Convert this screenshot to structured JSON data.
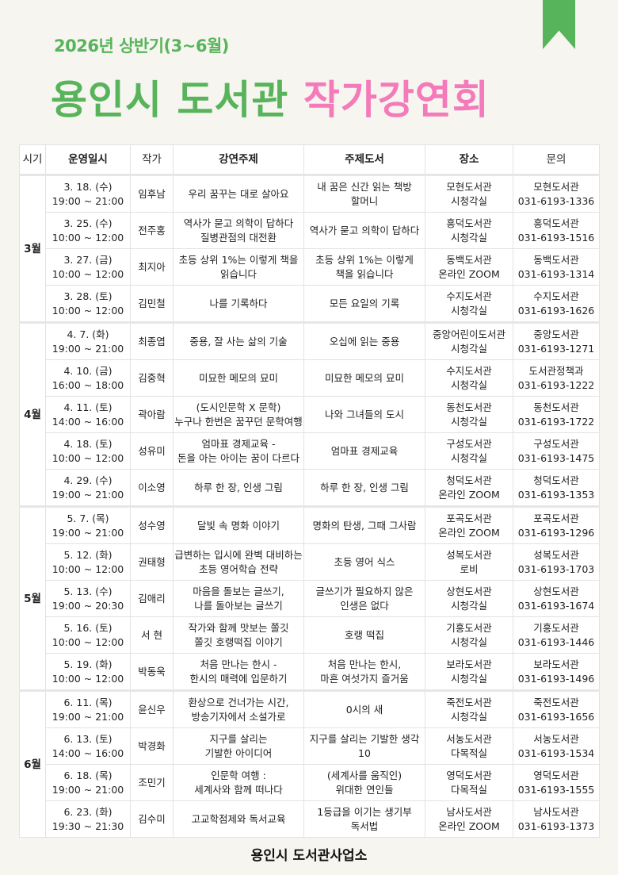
{
  "header": {
    "subtitle": "2026년 상반기(3~6월)",
    "title_green": "용인시 도서관",
    "title_pink": "작가강연회",
    "colors": {
      "green": "#58b45a",
      "pink": "#f47ab9"
    },
    "icon": "bookmark-icon"
  },
  "table": {
    "columns": [
      "시기",
      "운영일시",
      "작가",
      "강연주제",
      "주제도서",
      "장소",
      "문의"
    ],
    "groups": [
      {
        "month": "3월",
        "rows": [
          {
            "date": "3. 18. (수)",
            "time": "19:00 ~ 21:00",
            "author": "임후남",
            "topic": [
              "우리 꿈꾸는 대로 살아요"
            ],
            "book": [
              "내 꿈은 신간 읽는 책방",
              "할머니"
            ],
            "place": [
              "모현도서관",
              "시청각실"
            ],
            "contact": [
              "모현도서관",
              "031-6193-1336"
            ]
          },
          {
            "date": "3. 25. (수)",
            "time": "10:00 ~ 12:00",
            "author": "전주홍",
            "topic": [
              "역사가 묻고 의학이 답하다",
              "질병관점의 대전환"
            ],
            "book": [
              "역사가 묻고 의학이 답하다"
            ],
            "place": [
              "흥덕도서관",
              "시청각실"
            ],
            "contact": [
              "흥덕도서관",
              "031-6193-1516"
            ]
          },
          {
            "date": "3. 27. (금)",
            "time": "10:00 ~ 12:00",
            "author": "최지아",
            "topic": [
              "초등 상위 1%는 이렇게 책을",
              "읽습니다"
            ],
            "book": [
              "초등 상위 1%는 이렇게",
              "책을 읽습니다"
            ],
            "place": [
              "동백도서관",
              "온라인 ZOOM"
            ],
            "contact": [
              "동백도서관",
              "031-6193-1314"
            ]
          },
          {
            "date": "3. 28. (토)",
            "time": "10:00 ~ 12:00",
            "author": "김민철",
            "topic": [
              "나를 기록하다"
            ],
            "book": [
              "모든 요일의 기록"
            ],
            "place": [
              "수지도서관",
              "시청각실"
            ],
            "contact": [
              "수지도서관",
              "031-6193-1626"
            ]
          }
        ]
      },
      {
        "month": "4월",
        "rows": [
          {
            "date": "4. 7. (화)",
            "time": "19:00 ~ 21:00",
            "author": "최종엽",
            "topic": [
              "중용, 잘 사는 삶의 기술"
            ],
            "book": [
              "오십에 읽는 중용"
            ],
            "place": [
              "중앙어린이도서관",
              "시청각실"
            ],
            "contact": [
              "중앙도서관",
              "031-6193-1271"
            ]
          },
          {
            "date": "4. 10. (금)",
            "time": "16:00 ~ 18:00",
            "author": "김중혁",
            "topic": [
              "미묘한 메모의 묘미"
            ],
            "book": [
              "미묘한 메모의 묘미"
            ],
            "place": [
              "수지도서관",
              "시청각실"
            ],
            "contact": [
              "도서관정책과",
              "031-6193-1222"
            ]
          },
          {
            "date": "4. 11. (토)",
            "time": "14:00 ~ 16:00",
            "author": "곽아람",
            "topic": [
              "(도시인문학 X 문학)",
              "누구나 한번은 꿈꾸던 문학여행"
            ],
            "book": [
              "나와 그녀들의 도시"
            ],
            "place": [
              "동천도서관",
              "시청각실"
            ],
            "contact": [
              "동천도서관",
              "031-6193-1722"
            ]
          },
          {
            "date": "4. 18. (토)",
            "time": "10:00 ~ 12:00",
            "author": "성유미",
            "topic": [
              "엄마표 경제교육 -",
              "돈을 아는 아이는 꿈이 다르다"
            ],
            "book": [
              "엄마표 경제교육"
            ],
            "place": [
              "구성도서관",
              "시청각실"
            ],
            "contact": [
              "구성도서관",
              "031-6193-1475"
            ]
          },
          {
            "date": "4. 29. (수)",
            "time": "19:00 ~ 21:00",
            "author": "이소영",
            "topic": [
              "하루 한 장, 인생 그림"
            ],
            "book": [
              "하루 한 장, 인생 그림"
            ],
            "place": [
              "청덕도서관",
              "온라인 ZOOM"
            ],
            "contact": [
              "청덕도서관",
              "031-6193-1353"
            ]
          }
        ]
      },
      {
        "month": "5월",
        "rows": [
          {
            "date": "5. 7. (목)",
            "time": "19:00 ~ 21:00",
            "author": "성수영",
            "topic": [
              "달빛 속 명화 이야기"
            ],
            "book": [
              "명화의 탄생, 그때 그사람"
            ],
            "place": [
              "포곡도서관",
              "온라인 ZOOM"
            ],
            "contact": [
              "포곡도서관",
              "031-6193-1296"
            ]
          },
          {
            "date": "5. 12. (화)",
            "time": "10:00 ~ 12:00",
            "author": "권태형",
            "topic": [
              "급변하는 입시에 완벽 대비하는",
              "초등 영어학습 전략"
            ],
            "book": [
              "초등 영어 식스"
            ],
            "place": [
              "성복도서관",
              "로비"
            ],
            "contact": [
              "성복도서관",
              "031-6193-1703"
            ]
          },
          {
            "date": "5. 13. (수)",
            "time": "19:00 ~ 20:30",
            "author": "김애리",
            "topic": [
              "마음을 돌보는 글쓰기,",
              "나를 돌아보는 글쓰기"
            ],
            "book": [
              "글쓰기가 필요하지 않은",
              "인생은 없다"
            ],
            "place": [
              "상현도서관",
              "시청각실"
            ],
            "contact": [
              "상현도서관",
              "031-6193-1674"
            ]
          },
          {
            "date": "5. 16. (토)",
            "time": "10:00 ~ 12:00",
            "author": "서  현",
            "topic": [
              "작가와 함께 맛보는 쫄깃",
              "쫄깃 호랭떡집 이야기"
            ],
            "book": [
              "호랭 떡집"
            ],
            "place": [
              "기흥도서관",
              "시청각실"
            ],
            "contact": [
              "기흥도서관",
              "031-6193-1446"
            ]
          },
          {
            "date": "5. 19. (화)",
            "time": "10:00 ~ 12:00",
            "author": "박동욱",
            "topic": [
              "처음 만나는 한시 -",
              "한시의 매력에 입문하기"
            ],
            "book": [
              "처음 만나는 한시,",
              "마흔 여섯가지 즐거움"
            ],
            "place": [
              "보라도서관",
              "시청각실"
            ],
            "contact": [
              "보라도서관",
              "031-6193-1496"
            ]
          }
        ]
      },
      {
        "month": "6월",
        "rows": [
          {
            "date": "6. 11. (목)",
            "time": "19:00 ~ 21:00",
            "author": "윤신우",
            "topic": [
              "환상으로 건너가는 시간,",
              "방송기자에서 소설가로"
            ],
            "book": [
              "0시의 새"
            ],
            "place": [
              "죽전도서관",
              "시청각실"
            ],
            "contact": [
              "죽전도서관",
              "031-6193-1656"
            ]
          },
          {
            "date": "6. 13. (토)",
            "time": "14:00 ~ 16:00",
            "author": "박경화",
            "topic": [
              "지구를 살리는",
              "기발한 아이디어"
            ],
            "book": [
              "지구를 살리는 기발한 생각",
              "10"
            ],
            "place": [
              "서농도서관",
              "다목적실"
            ],
            "contact": [
              "서농도서관",
              "031-6193-1534"
            ]
          },
          {
            "date": "6. 18. (목)",
            "time": "19:00 ~ 21:00",
            "author": "조민기",
            "topic": [
              "인문학 여행 :",
              "세계사와 함께 떠나다"
            ],
            "book": [
              "(세계사를 움직인)",
              "위대한 연인들"
            ],
            "place": [
              "영덕도서관",
              "다목적실"
            ],
            "contact": [
              "영덕도서관",
              "031-6193-1555"
            ]
          },
          {
            "date": "6. 23. (화)",
            "time": "19:30 ~ 21:30",
            "author": "김수미",
            "topic": [
              "고교학점제와 독서교육"
            ],
            "book": [
              "1등급을 이기는 생기부",
              "독서법"
            ],
            "place": [
              "남사도서관",
              "온라인 ZOOM"
            ],
            "contact": [
              "남사도서관",
              "031-6193-1373"
            ]
          }
        ]
      }
    ]
  },
  "footer": {
    "text": "용인시 도서관사업소"
  }
}
